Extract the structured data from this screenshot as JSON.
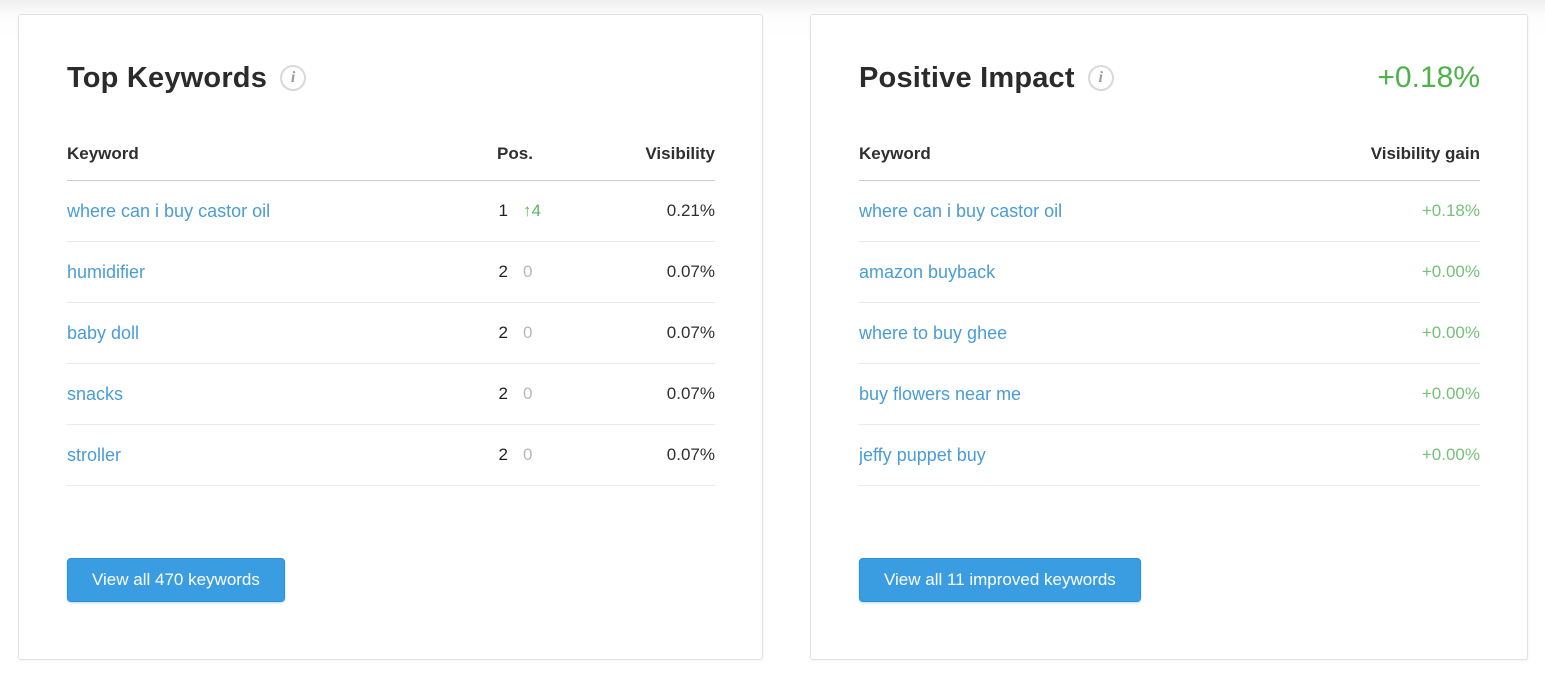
{
  "colors": {
    "link_blue": "#4a9cd6",
    "accent_green": "#4cb249",
    "gain_green": "#76c078",
    "muted_change_gray": "#b8b8b8",
    "button_blue": "#3a9de2"
  },
  "top_keywords": {
    "title": "Top Keywords",
    "info_icon": "i",
    "columns": {
      "keyword": "Keyword",
      "pos": "Pos.",
      "visibility": "Visibility"
    },
    "rows": [
      {
        "keyword": "where can i buy castor oil",
        "pos": "1",
        "change_text": "↑4",
        "change_dir": "up",
        "visibility": "0.21%"
      },
      {
        "keyword": "humidifier",
        "pos": "2",
        "change_text": "0",
        "change_dir": "zero",
        "visibility": "0.07%"
      },
      {
        "keyword": "baby doll",
        "pos": "2",
        "change_text": "0",
        "change_dir": "zero",
        "visibility": "0.07%"
      },
      {
        "keyword": "snacks",
        "pos": "2",
        "change_text": "0",
        "change_dir": "zero",
        "visibility": "0.07%"
      },
      {
        "keyword": "stroller",
        "pos": "2",
        "change_text": "0",
        "change_dir": "zero",
        "visibility": "0.07%"
      }
    ],
    "button_label": "View all 470 keywords"
  },
  "positive_impact": {
    "title": "Positive Impact",
    "info_icon": "i",
    "total_gain": "+0.18%",
    "columns": {
      "keyword": "Keyword",
      "gain": "Visibility gain"
    },
    "rows": [
      {
        "keyword": "where can i buy castor oil",
        "gain": "+0.18%"
      },
      {
        "keyword": "amazon buyback",
        "gain": "+0.00%"
      },
      {
        "keyword": "where to buy ghee",
        "gain": "+0.00%"
      },
      {
        "keyword": "buy flowers near me",
        "gain": "+0.00%"
      },
      {
        "keyword": "jeffy puppet buy",
        "gain": "+0.00%"
      }
    ],
    "button_label": "View all 11 improved keywords"
  }
}
